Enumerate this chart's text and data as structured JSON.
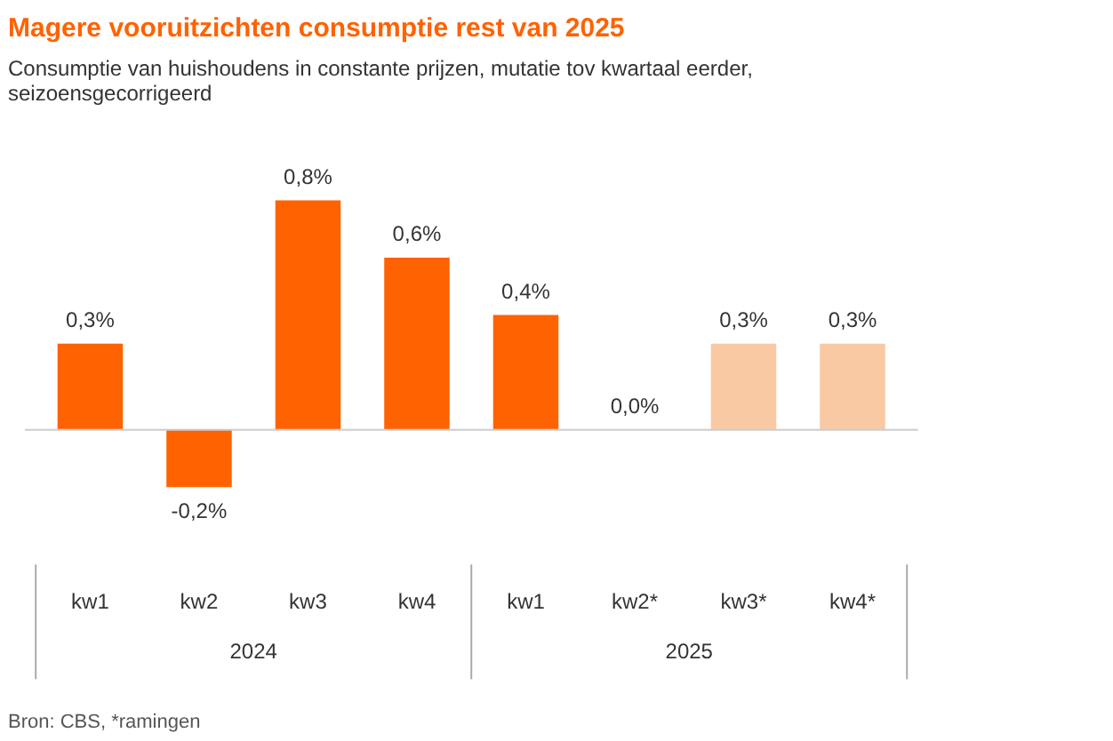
{
  "chart_data": {
    "type": "bar",
    "title": "Magere vooruitzichten consumptie rest van 2025",
    "subtitle": "Consumptie van huishoudens in constante prijzen, mutatie tov kwartaal eerder,\nseizoensgecorrigeerd",
    "categories": [
      "kw1",
      "kw2",
      "kw3",
      "kw4",
      "kw1",
      "kw2*",
      "kw3*",
      "kw4*"
    ],
    "values": [
      0.3,
      -0.2,
      0.8,
      0.6,
      0.4,
      0.0,
      0.3,
      0.3
    ],
    "colors": [
      "#ff6200",
      "#ff6200",
      "#ff6200",
      "#ff6200",
      "#ff6200",
      "#ff6200",
      "#f9c9a4",
      "#f9c9a4"
    ],
    "value_labels": [
      "0,3%",
      "-0,2%",
      "0,8%",
      "0,6%",
      "0,4%",
      "0,0%",
      "0,3%",
      "0,3%"
    ],
    "annotations": [
      "2024",
      "2025",
      "Bron: CBS, *ramingen"
    ],
    "grid": false
  }
}
